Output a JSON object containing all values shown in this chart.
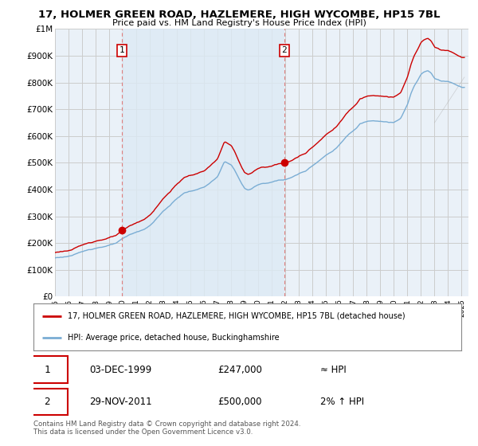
{
  "title": "17, HOLMER GREEN ROAD, HAZLEMERE, HIGH WYCOMBE, HP15 7BL",
  "subtitle": "Price paid vs. HM Land Registry's House Price Index (HPI)",
  "line1_label": "17, HOLMER GREEN ROAD, HAZLEMERE, HIGH WYCOMBE, HP15 7BL (detached house)",
  "line2_label": "HPI: Average price, detached house, Buckinghamshire",
  "sale1_date": "03-DEC-1999",
  "sale1_price": "£247,000",
  "sale1_hpi": "≈ HPI",
  "sale2_date": "29-NOV-2011",
  "sale2_price": "£500,000",
  "sale2_hpi": "2% ↑ HPI",
  "footer": "Contains HM Land Registry data © Crown copyright and database right 2024.\nThis data is licensed under the Open Government Licence v3.0.",
  "red_color": "#cc0000",
  "blue_color": "#7aadd4",
  "dashed_red": "#e08080",
  "bg_color": "#ffffff",
  "chart_bg": "#eaf1f8",
  "grid_color": "#cccccc",
  "shade_color": "#ddeaf5",
  "ylim": [
    0,
    1000000
  ],
  "yticks": [
    0,
    100000,
    200000,
    300000,
    400000,
    500000,
    600000,
    700000,
    800000,
    900000,
    1000000
  ],
  "ytick_labels": [
    "£0",
    "£100K",
    "£200K",
    "£300K",
    "£400K",
    "£500K",
    "£600K",
    "£700K",
    "£800K",
    "£900K",
    "£1M"
  ],
  "sale1_x": 1999.92,
  "sale1_y": 247000,
  "sale2_x": 2011.92,
  "sale2_y": 500000,
  "vline1_x": 1999.92,
  "vline2_x": 2011.92,
  "xmin": 1995.0,
  "xmax": 2025.5
}
